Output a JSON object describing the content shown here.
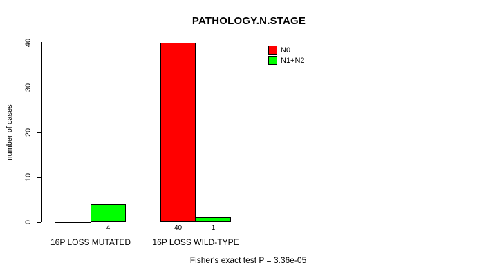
{
  "chart_data": {
    "type": "bar",
    "title": "PATHOLOGY.N.STAGE",
    "xlabel": "",
    "ylabel": "number of cases",
    "categories": [
      "16P LOSS MUTATED",
      "16P LOSS WILD-TYPE"
    ],
    "series": [
      {
        "name": "N0",
        "color": "#ff0000",
        "values": [
          0,
          40
        ],
        "bar_labels": [
          "",
          "40"
        ]
      },
      {
        "name": "N1+N2",
        "color": "#00ff00",
        "values": [
          4,
          1
        ],
        "bar_labels": [
          "4",
          "1"
        ]
      }
    ],
    "ylim": [
      0,
      40
    ],
    "yticks": [
      0,
      10,
      20,
      30,
      40
    ],
    "grid": false,
    "legend_position": "top-right",
    "annotation": "Fisher's exact test P = 3.36e-05"
  }
}
